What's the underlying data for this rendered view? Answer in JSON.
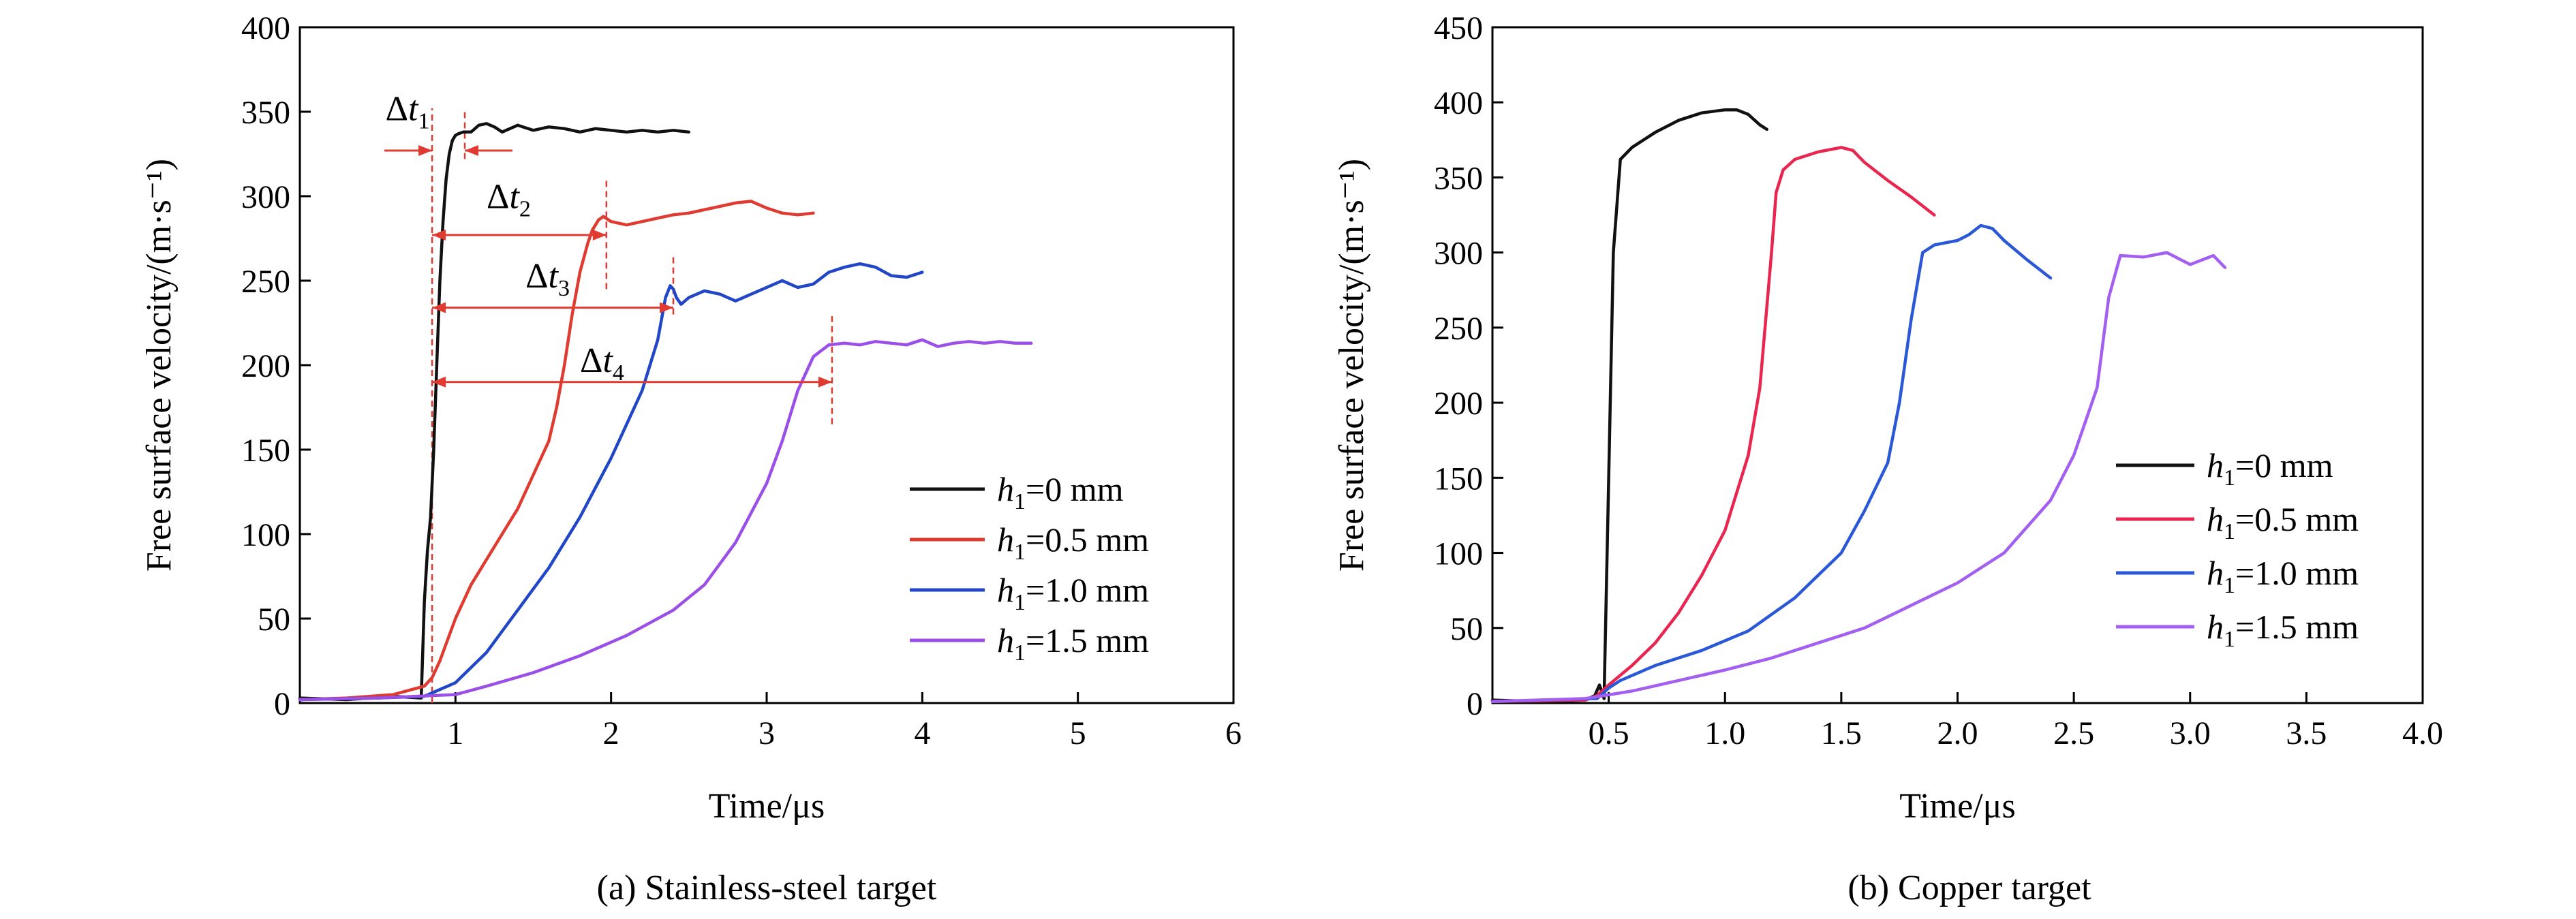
{
  "chart_data": [
    {
      "type": "line",
      "caption": "(a) Stainless-steel target",
      "xlabel": "Time/μs",
      "ylabel": "Free surface velocity/(m·s⁻¹)",
      "xlim": [
        0,
        6
      ],
      "ylim": [
        0,
        400
      ],
      "xticks": [
        1,
        2,
        3,
        4,
        5,
        6
      ],
      "yticks": [
        0,
        50,
        100,
        150,
        200,
        250,
        300,
        350,
        400
      ],
      "grid": false,
      "legend_position": "lower-right",
      "series": [
        {
          "name": "h1=0 mm",
          "name_var": "h",
          "name_sub": "1",
          "name_rest": "=0 mm",
          "color": "#111111",
          "x": [
            0.0,
            0.3,
            0.6,
            0.78,
            0.8,
            0.82,
            0.84,
            0.86,
            0.88,
            0.9,
            0.92,
            0.94,
            0.96,
            0.98,
            1.0,
            1.02,
            1.05,
            1.1,
            1.15,
            1.2,
            1.25,
            1.3,
            1.35,
            1.4,
            1.5,
            1.6,
            1.7,
            1.8,
            1.9,
            2.0,
            2.1,
            2.2,
            2.3,
            2.4,
            2.5
          ],
          "y": [
            3,
            2,
            4,
            3,
            60,
            90,
            110,
            150,
            200,
            250,
            285,
            310,
            325,
            333,
            336,
            337,
            338,
            338,
            342,
            343,
            341,
            338,
            340,
            342,
            339,
            341,
            340,
            338,
            340,
            339,
            338,
            339,
            338,
            339,
            338
          ]
        },
        {
          "name": "h1=0.5 mm",
          "name_var": "h",
          "name_sub": "1",
          "name_rest": "=0.5 mm",
          "color": "#e03b30",
          "x": [
            0.0,
            0.3,
            0.6,
            0.8,
            0.85,
            0.9,
            1.0,
            1.1,
            1.2,
            1.3,
            1.4,
            1.5,
            1.6,
            1.65,
            1.7,
            1.75,
            1.8,
            1.85,
            1.88,
            1.9,
            1.92,
            1.95,
            2.0,
            2.1,
            2.2,
            2.3,
            2.4,
            2.5,
            2.6,
            2.7,
            2.8,
            2.9,
            2.95,
            3.0,
            3.1,
            3.2,
            3.3
          ],
          "y": [
            2,
            3,
            5,
            10,
            15,
            25,
            50,
            70,
            85,
            100,
            115,
            135,
            155,
            175,
            200,
            230,
            255,
            272,
            280,
            283,
            286,
            288,
            285,
            283,
            285,
            287,
            289,
            290,
            292,
            294,
            296,
            297,
            295,
            293,
            290,
            289,
            290
          ]
        },
        {
          "name": "h1=1.0 mm",
          "name_var": "h",
          "name_sub": "1",
          "name_rest": "=1.0 mm",
          "color": "#2146c8",
          "x": [
            0.0,
            0.5,
            0.8,
            1.0,
            1.2,
            1.4,
            1.6,
            1.8,
            2.0,
            2.2,
            2.3,
            2.35,
            2.38,
            2.4,
            2.42,
            2.45,
            2.5,
            2.6,
            2.7,
            2.8,
            2.9,
            3.0,
            3.1,
            3.2,
            3.3,
            3.4,
            3.5,
            3.6,
            3.7,
            3.8,
            3.9,
            4.0
          ],
          "y": [
            2,
            3,
            4,
            12,
            30,
            55,
            80,
            110,
            145,
            185,
            215,
            240,
            247,
            245,
            240,
            236,
            240,
            244,
            242,
            238,
            242,
            246,
            250,
            246,
            248,
            255,
            258,
            260,
            258,
            253,
            252,
            255
          ]
        },
        {
          "name": "h1=1.5 mm",
          "name_var": "h",
          "name_sub": "1",
          "name_rest": "=1.5 mm",
          "color": "#9a4fe6",
          "x": [
            0.0,
            0.5,
            1.0,
            1.2,
            1.5,
            1.8,
            2.1,
            2.4,
            2.6,
            2.8,
            3.0,
            3.1,
            3.2,
            3.3,
            3.4,
            3.5,
            3.6,
            3.7,
            3.8,
            3.9,
            4.0,
            4.1,
            4.2,
            4.3,
            4.4,
            4.5,
            4.6,
            4.7
          ],
          "y": [
            2,
            3,
            5,
            10,
            18,
            28,
            40,
            55,
            70,
            95,
            130,
            155,
            185,
            205,
            212,
            213,
            212,
            214,
            213,
            212,
            215,
            211,
            213,
            214,
            213,
            214,
            213,
            213
          ]
        }
      ],
      "annotations": [
        {
          "text": "Δt1",
          "base": "Δ",
          "var": "t",
          "sub": "1",
          "x": 0.55,
          "y": 345
        },
        {
          "text": "Δt2",
          "base": "Δ",
          "var": "t",
          "sub": "2",
          "x": 1.2,
          "y": 293
        },
        {
          "text": "Δt3",
          "base": "Δ",
          "var": "t",
          "sub": "3",
          "x": 1.45,
          "y": 246
        },
        {
          "text": "Δt4",
          "base": "Δ",
          "var": "t",
          "sub": "4",
          "x": 1.8,
          "y": 196
        }
      ],
      "intervals": [
        {
          "x_start": 0.85,
          "x_end": 1.06,
          "y": 327,
          "style": "outside-arrows"
        },
        {
          "x_start": 0.85,
          "x_end": 1.97,
          "y": 277,
          "style": "double-arrow"
        },
        {
          "x_start": 0.85,
          "x_end": 2.4,
          "y": 234,
          "style": "double-arrow"
        },
        {
          "x_start": 0.85,
          "x_end": 3.42,
          "y": 190,
          "style": "double-arrow"
        }
      ],
      "reference_lines": [
        {
          "x": 0.85,
          "y_range": [
            0,
            352
          ]
        },
        {
          "x": 1.06,
          "y_range": [
            322,
            350
          ]
        },
        {
          "x": 1.97,
          "y_range": [
            245,
            310
          ]
        },
        {
          "x": 2.4,
          "y_range": [
            230,
            266
          ]
        },
        {
          "x": 3.42,
          "y_range": [
            165,
            229
          ]
        }
      ]
    },
    {
      "type": "line",
      "caption": "(b) Copper target",
      "xlabel": "Time/μs",
      "ylabel": "Free surface velocity/(m·s⁻¹)",
      "xlim": [
        0,
        4.0
      ],
      "ylim": [
        0,
        450
      ],
      "xticks": [
        0.5,
        1.0,
        1.5,
        2.0,
        2.5,
        3.0,
        3.5,
        4.0
      ],
      "yticks": [
        0,
        50,
        100,
        150,
        200,
        250,
        300,
        350,
        400,
        450
      ],
      "grid": false,
      "legend_position": "lower-right",
      "series": [
        {
          "name": "h1=0 mm",
          "name_var": "h",
          "name_sub": "1",
          "name_rest": "=0 mm",
          "color": "#111111",
          "x": [
            0.0,
            0.2,
            0.4,
            0.44,
            0.46,
            0.48,
            0.5,
            0.52,
            0.55,
            0.6,
            0.7,
            0.8,
            0.9,
            1.0,
            1.05,
            1.1,
            1.15,
            1.18
          ],
          "y": [
            2,
            1,
            2,
            5,
            12,
            3,
            150,
            300,
            362,
            370,
            380,
            388,
            393,
            395,
            395,
            392,
            385,
            382
          ]
        },
        {
          "name": "h1=0.5 mm",
          "name_var": "h",
          "name_sub": "1",
          "name_rest": "=0.5 mm",
          "color": "#e8264f",
          "x": [
            0.0,
            0.4,
            0.45,
            0.5,
            0.6,
            0.7,
            0.8,
            0.9,
            1.0,
            1.1,
            1.15,
            1.2,
            1.22,
            1.25,
            1.3,
            1.4,
            1.5,
            1.55,
            1.6,
            1.7,
            1.8,
            1.9
          ],
          "y": [
            1,
            2,
            5,
            12,
            25,
            40,
            60,
            85,
            115,
            165,
            210,
            300,
            340,
            355,
            362,
            367,
            370,
            368,
            360,
            348,
            337,
            325
          ]
        },
        {
          "name": "h1=1.0 mm",
          "name_var": "h",
          "name_sub": "1",
          "name_rest": "=1.0 mm",
          "color": "#2a58d6",
          "x": [
            0.0,
            0.45,
            0.5,
            0.55,
            0.7,
            0.9,
            1.1,
            1.3,
            1.5,
            1.6,
            1.7,
            1.75,
            1.8,
            1.85,
            1.9,
            2.0,
            2.05,
            2.1,
            2.15,
            2.2,
            2.3,
            2.4
          ],
          "y": [
            1,
            3,
            10,
            15,
            25,
            35,
            48,
            70,
            100,
            128,
            160,
            200,
            255,
            300,
            305,
            308,
            312,
            318,
            316,
            308,
            295,
            283
          ]
        },
        {
          "name": "h1=1.5 mm",
          "name_var": "h",
          "name_sub": "1",
          "name_rest": "=1.5 mm",
          "color": "#a35ff0",
          "x": [
            0.0,
            0.4,
            0.6,
            0.8,
            1.0,
            1.2,
            1.4,
            1.6,
            1.8,
            2.0,
            2.2,
            2.4,
            2.5,
            2.6,
            2.65,
            2.7,
            2.8,
            2.9,
            3.0,
            3.1,
            3.15
          ],
          "y": [
            1,
            3,
            8,
            15,
            22,
            30,
            40,
            50,
            65,
            80,
            100,
            135,
            165,
            210,
            270,
            298,
            297,
            300,
            292,
            298,
            290
          ]
        }
      ]
    }
  ]
}
